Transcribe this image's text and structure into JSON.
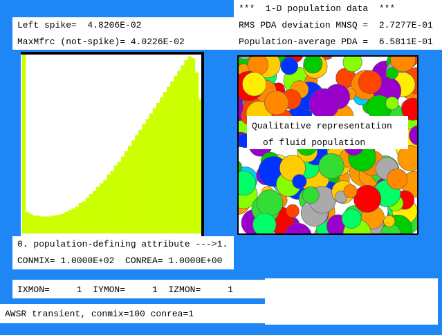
{
  "info_panel": {
    "title": "***  1-D population data  ***",
    "rms": "RMS PDA deviation MNSQ =  2.7277E-01",
    "average": "Population-average PDA =  6.5811E-01"
  },
  "spike_panel": {
    "left_spike": "Left spike=  4.8206E-02",
    "max_mfrc": "MaxMfrc (not-spike)= 4.0226E-02"
  },
  "histogram": {
    "values": [
      1.0,
      0.12,
      0.11,
      0.1,
      0.1,
      0.095,
      0.095,
      0.095,
      0.1,
      0.1,
      0.105,
      0.11,
      0.12,
      0.13,
      0.14,
      0.15,
      0.17,
      0.18,
      0.2,
      0.22,
      0.24,
      0.26,
      0.28,
      0.3,
      0.33,
      0.35,
      0.38,
      0.4,
      0.43,
      0.46,
      0.49,
      0.52,
      0.55,
      0.58,
      0.61,
      0.64,
      0.67,
      0.7,
      0.73,
      0.76,
      0.79,
      0.82,
      0.85,
      0.88,
      0.91,
      0.94,
      0.97,
      0.99,
      0.98,
      0.9,
      0.75
    ],
    "color": "#ccff00"
  },
  "population_label": {
    "line1": "Qualitative representation",
    "line2": "of fluid population"
  },
  "attribute_panel": {
    "attribute": "0. population-defining attribute --->1.",
    "constants": "CONMIX= 1.0000E+02  CONREA= 1.0000E+00"
  },
  "monitor": {
    "text": "IXMON=     1  IYMON=     1  IZMON=     1"
  },
  "status": {
    "text": "AWSR transient, conmix=100 conrea=1"
  }
}
